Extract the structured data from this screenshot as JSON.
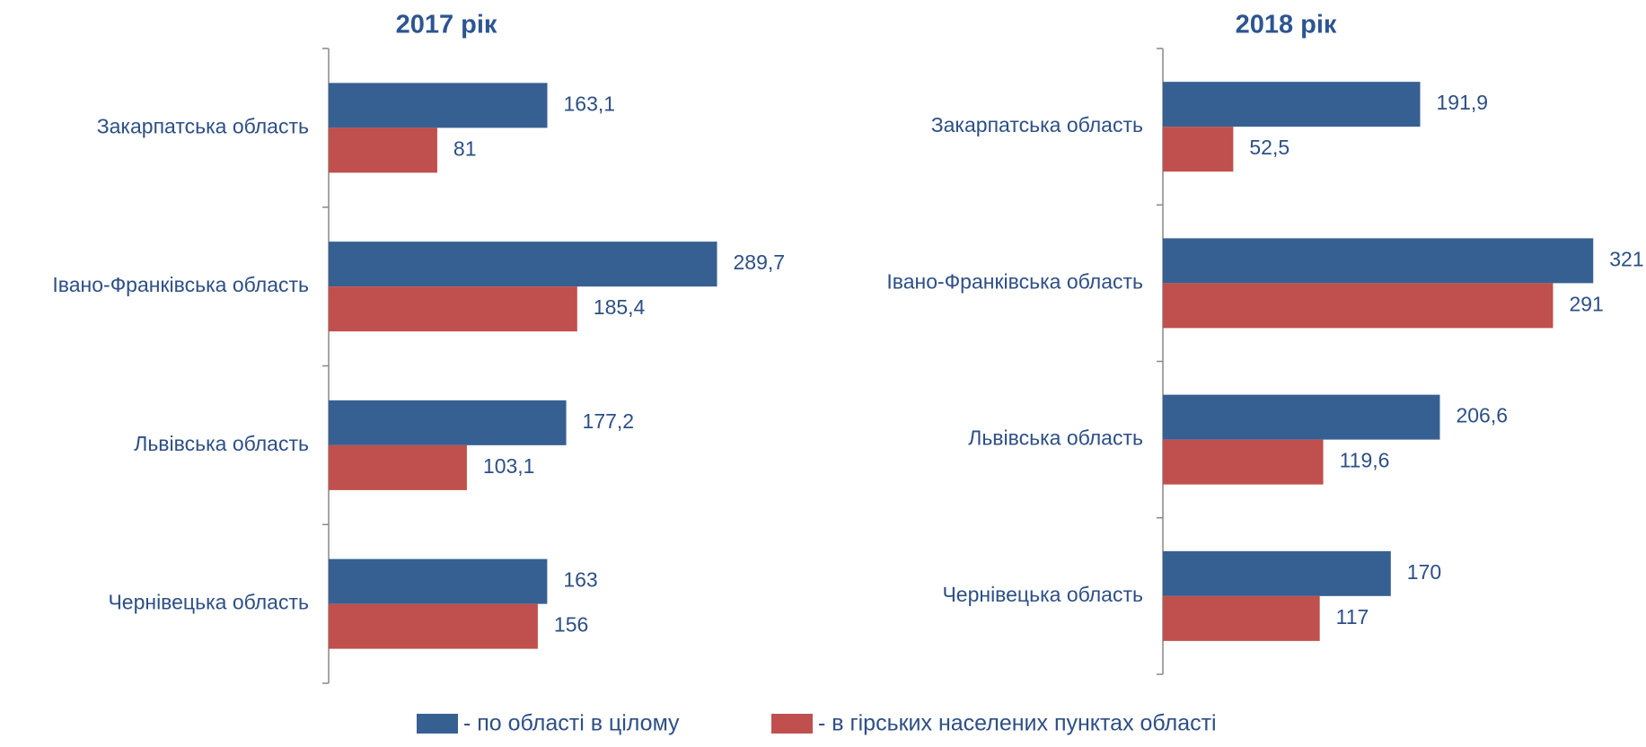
{
  "chart_data": [
    {
      "type": "barh",
      "title": "2017 рік",
      "categories": [
        "Закарпатська область",
        "Івано-Франківська область",
        "Львівська область",
        "Чернівецька область"
      ],
      "series": [
        {
          "name": "- по області в цілому",
          "color": "#376092",
          "values": [
            163.1,
            289.7,
            177.2,
            163
          ],
          "value_labels": [
            "163,1",
            "289,7",
            "177,2",
            "163"
          ]
        },
        {
          "name": "- в гірських населених пунктах області",
          "color": "#c0504d",
          "values": [
            81,
            185.4,
            103.1,
            156
          ],
          "value_labels": [
            "81",
            "185,4",
            "103,1",
            "156"
          ]
        }
      ]
    },
    {
      "type": "barh",
      "title": "2018 рік",
      "categories": [
        "Закарпатська область",
        "Івано-Франківська область",
        "Львівська область",
        "Чернівецька область"
      ],
      "series": [
        {
          "color": "#376092",
          "values": [
            191.9,
            321,
            206.6,
            170
          ],
          "value_labels": [
            "191,9",
            "321",
            "206,6",
            "170"
          ]
        },
        {
          "color": "#c0504d",
          "values": [
            52.5,
            291,
            119.6,
            117
          ],
          "value_labels": [
            "52,5",
            "291",
            "119,6",
            "117"
          ]
        }
      ]
    }
  ]
}
